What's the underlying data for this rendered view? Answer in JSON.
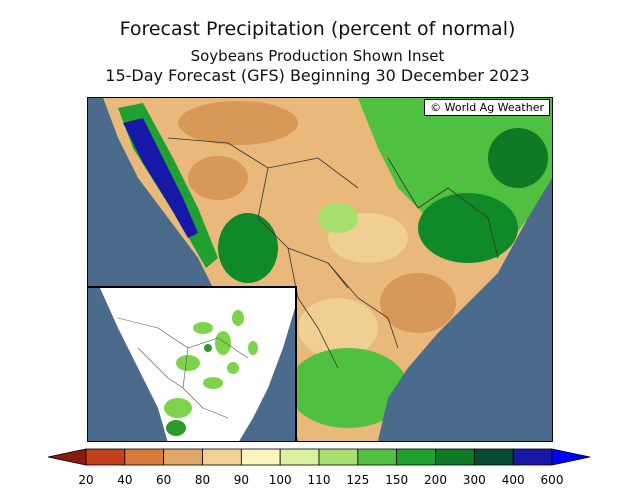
{
  "titles": {
    "main": "Forecast Precipitation (percent of normal)",
    "inset_note": "Soybeans Production Shown Inset",
    "forecast": "15-Day Forecast (GFS) Beginning 30 December 2023"
  },
  "copyright": "© World Ag Weather",
  "legend": {
    "labels": [
      "20",
      "40",
      "60",
      "80",
      "90",
      "100",
      "110",
      "125",
      "150",
      "200",
      "300",
      "400",
      "600"
    ],
    "colors": [
      "#8b1a10",
      "#c0401c",
      "#d87a3c",
      "#e0a868",
      "#f2d294",
      "#fdf5c0",
      "#d8f2a0",
      "#a8e070",
      "#4fc040",
      "#20a030",
      "#0e7a24",
      "#084a30",
      "#1818a8",
      "#0000ff"
    ]
  },
  "colors": {
    "ocean": "#4a6b8c",
    "dry_dark": "#d89858",
    "dry_light": "#f0d092",
    "normal": "#fdf5c0",
    "wet_light": "#a8e070",
    "wet": "#4fc040",
    "wet_dark": "#108a28",
    "very_wet": "#1818a8"
  }
}
